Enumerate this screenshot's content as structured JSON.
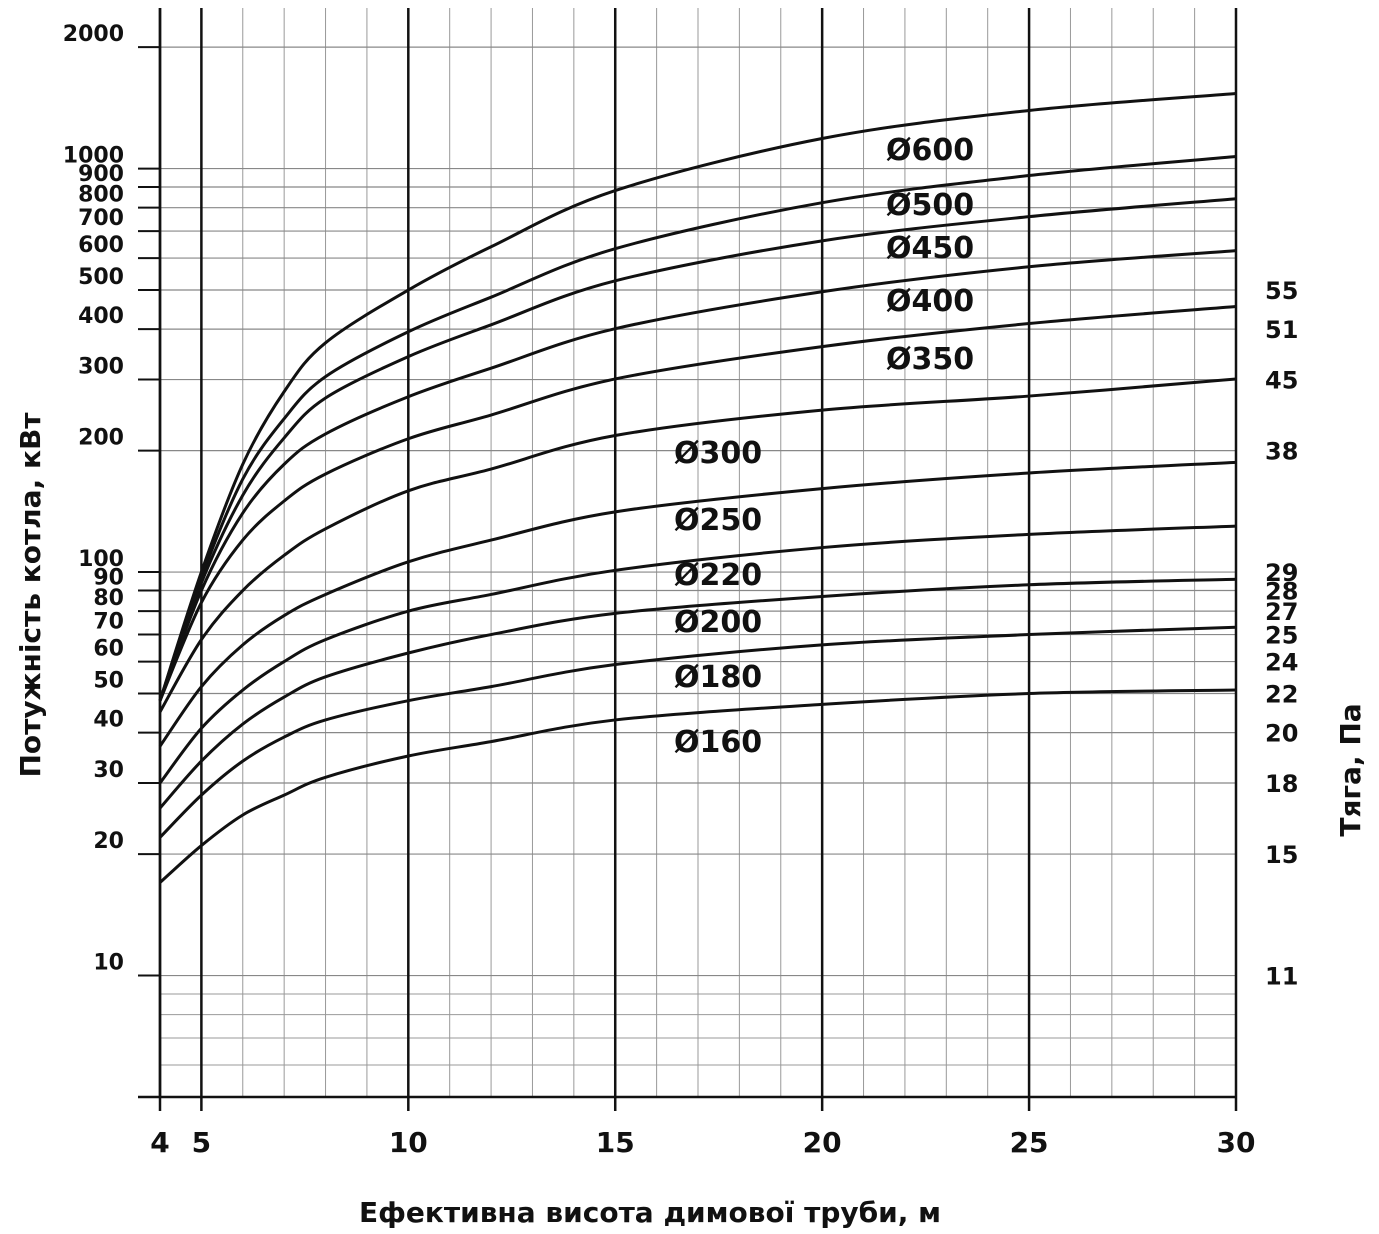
{
  "chart_data": {
    "type": "line",
    "x_label": "Ефективна висота димової труби, м",
    "y_label": "Потужність котла, кВт",
    "y2_label": "Тяга, Па",
    "yscale": "log",
    "grid": true,
    "color": "#111111",
    "xlim": [
      4,
      30
    ],
    "xticks": [
      4,
      5,
      10,
      15,
      20,
      25,
      30
    ],
    "xminor": [
      6,
      7,
      8,
      9,
      11,
      12,
      13,
      14,
      16,
      17,
      18,
      19,
      21,
      22,
      23,
      24,
      26,
      27,
      28,
      29
    ],
    "ylim": [
      5,
      2500
    ],
    "yticks": [
      10,
      20,
      30,
      40,
      50,
      60,
      70,
      80,
      90,
      100,
      200,
      300,
      400,
      500,
      600,
      700,
      800,
      900,
      1000,
      2000
    ],
    "yminor": [
      6,
      7,
      8,
      9
    ],
    "y2ticks": [
      {
        "power": 500,
        "draft": 55
      },
      {
        "power": 400,
        "draft": 51
      },
      {
        "power": 300,
        "draft": 45
      },
      {
        "power": 200,
        "draft": 38
      },
      {
        "power": 100,
        "draft": 29
      },
      {
        "power": 90,
        "draft": 28
      },
      {
        "power": 80,
        "draft": 27
      },
      {
        "power": 70,
        "draft": 25
      },
      {
        "power": 60,
        "draft": 24
      },
      {
        "power": 50,
        "draft": 22
      },
      {
        "power": 40,
        "draft": 20
      },
      {
        "power": 30,
        "draft": 18
      },
      {
        "power": 20,
        "draft": 15
      },
      {
        "power": 10,
        "draft": 11
      }
    ],
    "x": [
      4,
      5,
      6,
      7,
      8,
      10,
      12,
      15,
      20,
      25,
      30
    ],
    "series": [
      {
        "name": "Ø600",
        "values": [
          48,
          100,
          185,
          280,
          370,
          500,
          640,
          882,
          1187,
          1393,
          1535
        ]
      },
      {
        "name": "Ø500",
        "values": [
          48,
          97,
          170,
          240,
          305,
          394,
          480,
          633,
          823,
          961,
          1071
        ]
      },
      {
        "name": "Ø450",
        "values": [
          48,
          94,
          155,
          215,
          270,
          342,
          410,
          527,
          662,
          760,
          842
        ]
      },
      {
        "name": "Ø400",
        "values": [
          48,
          90,
          140,
          185,
          220,
          272,
          320,
          401,
          495,
          571,
          626
        ]
      },
      {
        "name": "Ø350",
        "values": [
          48,
          84,
          120,
          150,
          175,
          214,
          245,
          301,
          362,
          413,
          455
        ]
      },
      {
        "name": "Ø300",
        "values": [
          45,
          68,
          90,
          110,
          128,
          159,
          180,
          218,
          252,
          273,
          301
        ]
      },
      {
        "name": "Ø250",
        "values": [
          37,
          52,
          66,
          78,
          88,
          106,
          120,
          141,
          161,
          176,
          187
        ]
      },
      {
        "name": "Ø220",
        "values": [
          30,
          41,
          51,
          60,
          68,
          80,
          88,
          101,
          115,
          124,
          130
        ]
      },
      {
        "name": "Ø200",
        "values": [
          26,
          34,
          42,
          49,
          55,
          63,
          70,
          79,
          87,
          93,
          96
        ]
      },
      {
        "name": "Ø180",
        "values": [
          22,
          28,
          34,
          39,
          43,
          48,
          52,
          59,
          66,
          70,
          73
        ]
      },
      {
        "name": "Ø160",
        "values": [
          17,
          21,
          25,
          28,
          31,
          35,
          38,
          43,
          47,
          50,
          51
        ]
      }
    ]
  }
}
